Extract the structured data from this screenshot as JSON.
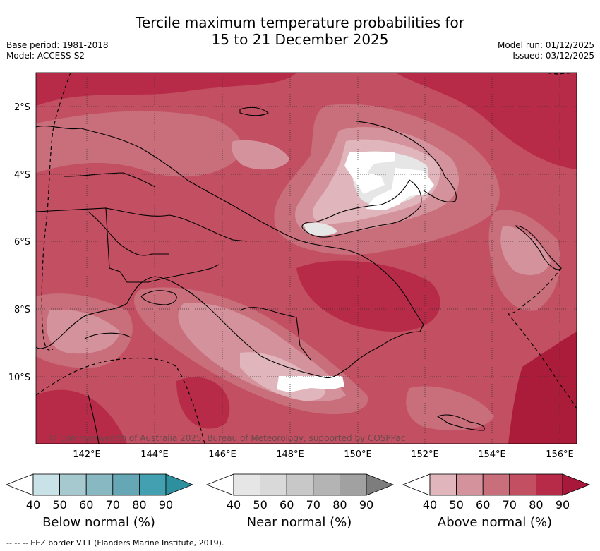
{
  "title_line1": "Tercile maximum temperature probabilities for",
  "title_line2": "15 to 21 December 2025",
  "meta_left": {
    "base_period": "Base period: 1981-2018",
    "model": "Model: ACCESS-S2"
  },
  "meta_right": {
    "model_run": "Model run: 01/12/2025",
    "issued": "Issued: 03/12/2025"
  },
  "map": {
    "lat_labels": [
      "2°S",
      "4°S",
      "6°S",
      "8°S",
      "10°S"
    ],
    "lon_labels": [
      "142°E",
      "144°E",
      "146°E",
      "148°E",
      "150°E",
      "152°E",
      "154°E",
      "156°E"
    ],
    "copyright": "© Commonwealth of Australia 2025, Bureau of Meteorology, supported by COSPPac",
    "colors": {
      "above_80": "#b72a48",
      "above_70": "#c24f62",
      "above_60": "#c96e7b",
      "above_50": "#d4939c",
      "above_40": "#e0b5bb",
      "normal_40": "#e6e6e6",
      "white": "#ffffff",
      "above_90": "#ab1b3a"
    }
  },
  "colorbars": [
    {
      "title": "Below normal (%)",
      "ticks": [
        "40",
        "50",
        "60",
        "70",
        "80",
        "90"
      ],
      "colors": [
        "#ffffff",
        "#c8e2e8",
        "#a6c9cf",
        "#88b8c1",
        "#66a7b6",
        "#42a0b0",
        "#2e8f9f"
      ]
    },
    {
      "title": "Near normal (%)",
      "ticks": [
        "40",
        "50",
        "60",
        "70",
        "80",
        "90"
      ],
      "colors": [
        "#ffffff",
        "#e6e6e6",
        "#d9d9d9",
        "#c8c8c8",
        "#b4b4b4",
        "#a1a1a1",
        "#7d7d7d"
      ]
    },
    {
      "title": "Above normal (%)",
      "ticks": [
        "40",
        "50",
        "60",
        "70",
        "80",
        "90"
      ],
      "colors": [
        "#ffffff",
        "#e0b5bb",
        "#d4939c",
        "#c96e7b",
        "#c24f62",
        "#b72a48",
        "#a8183a"
      ]
    }
  ],
  "footnote": "--  --  -- EEZ border V11 (Flanders Marine Institute, 2019)."
}
